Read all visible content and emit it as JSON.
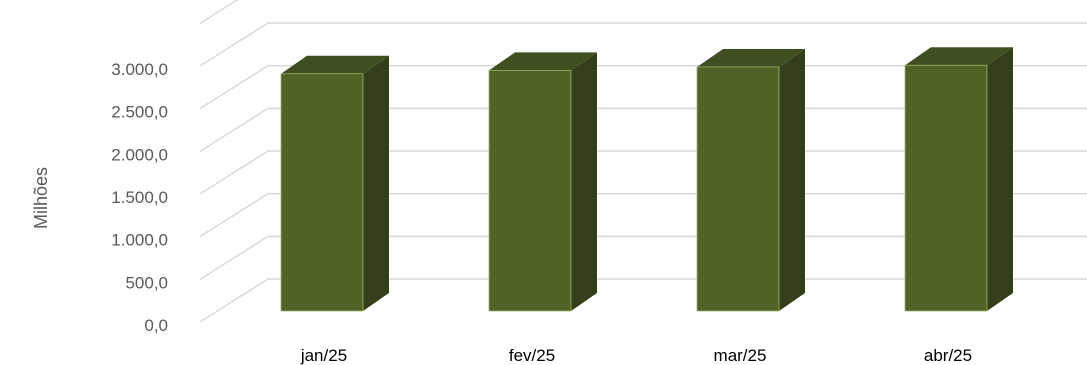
{
  "chart_data": {
    "type": "bar",
    "style": "3d-column",
    "categories": [
      "jan/25",
      "fev/25",
      "mar/25",
      "abr/25"
    ],
    "series": [
      {
        "values": [
          2780,
          2820,
          2860,
          2880
        ]
      }
    ],
    "ylabel": "Milhões",
    "xlabel": "",
    "title": "",
    "ylim": [
      0,
      3000
    ],
    "yticks": [
      "0,0",
      "500,0",
      "1.000,0",
      "1.500,0",
      "2.000,0",
      "2.500,0",
      "3.000,0"
    ],
    "grid": true,
    "legend": "none",
    "colors": {
      "bar_front": "#4f6228",
      "bar_top": "#3f4f20",
      "bar_side": "#333f1a",
      "bar_edge": "#9fb36a",
      "grid": "#d9d9d9",
      "text": "#595959"
    }
  }
}
